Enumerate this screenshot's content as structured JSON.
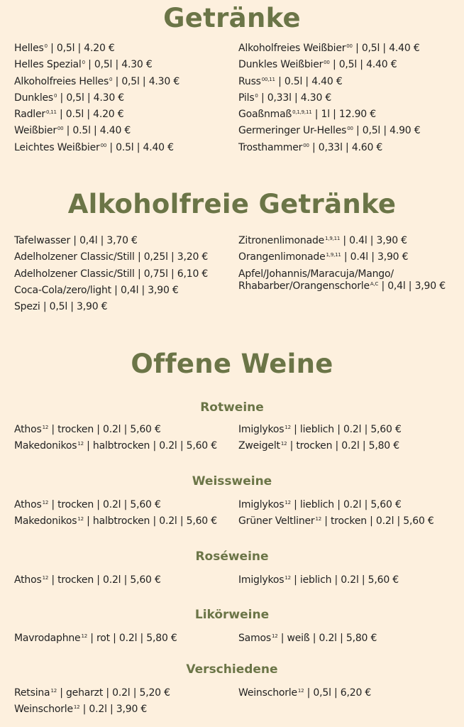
{
  "colors": {
    "background": "#fdf0de",
    "heading": "#6b7547",
    "text": "#222222"
  },
  "sections": [
    {
      "id": "getraenke",
      "title": "Getränke",
      "left": [
        {
          "name": "Helles",
          "sup": "0",
          "rest": " | 0,5l | 4.20 €"
        },
        {
          "name": "Helles Spezial",
          "sup": "0",
          "rest": " | 0,5l | 4.30 €"
        },
        {
          "name": "Alkoholfreies Helles",
          "sup": "0",
          "rest": " | 0,5l | 4.30 €"
        },
        {
          "name": "Dunkles",
          "sup": "0",
          "rest": " | 0,5l | 4.30 €"
        },
        {
          "name": "Radler",
          "sup": "0,11",
          "rest": " | 0.5l | 4.20 €"
        },
        {
          "name": "Weißbier",
          "sup": "00",
          "rest": " | 0.5l | 4.40 €"
        },
        {
          "name": "Leichtes Weißbier",
          "sup": "00",
          "rest": " | 0.5l | 4.40 €"
        }
      ],
      "right": [
        {
          "name": "Alkoholfreies Weißbier",
          "sup": "00",
          "rest": " | 0,5l | 4.40 €"
        },
        {
          "name": "Dunkles Weißbier",
          "sup": "00",
          "rest": " | 0,5l | 4.40 €"
        },
        {
          "name": "Russ",
          "sup": "00,11",
          "rest": " | 0.5l | 4.40 €"
        },
        {
          "name": "Pils",
          "sup": "0",
          "rest": " | 0,33l | 4.30 €"
        },
        {
          "name": "Goaßnmaß",
          "sup": "0,1,9,11",
          "rest": " | 1l | 12.90 €"
        },
        {
          "name": "Germeringer Ur-Helles",
          "sup": "00",
          "rest": " | 0,5l | 4.90 €"
        },
        {
          "name": "Trosthammer",
          "sup": "00",
          "rest": " | 0,33l | 4.60 €"
        }
      ]
    },
    {
      "id": "alkoholfrei",
      "title": "Alkoholfreie Getränke",
      "left": [
        {
          "name": "Tafelwasser",
          "sup": "",
          "rest": " | 0,4l | 3,70 €"
        },
        {
          "name": "Adelholzener Classic/Still",
          "sup": "",
          "rest": " | 0,25l | 3,20 €"
        },
        {
          "name": "Adelholzener Classic/Still",
          "sup": "",
          "rest": " | 0,75l | 6,10 €"
        },
        {
          "name": "Coca-Cola/zero/light",
          "sup": "",
          "rest": " | 0,4l | 3,90 €"
        },
        {
          "name": "Spezi",
          "sup": "",
          "rest": " | 0,5l | 3,90 €"
        }
      ],
      "right": [
        {
          "name": "Zitronenlimonade",
          "sup": "1,9,11",
          "rest": " | 0.4l | 3,90 €"
        },
        {
          "name": "Orangenlimonade",
          "sup": "1,9,11",
          "rest": " | 0.4l | 3,90 €"
        },
        {
          "name": "Apfel/Johannis/Maracuja/Mango/\nRhabarber/Orangenschorle",
          "sup": "A,C",
          "rest": " | 0,4l | 3,90 €"
        }
      ]
    },
    {
      "id": "weine",
      "title": "Offene Weine"
    }
  ],
  "wines": [
    {
      "title": "Rotweine",
      "left": [
        {
          "name": "Athos",
          "sup": "12",
          "rest": " | trocken | 0.2l | 5,60 €"
        },
        {
          "name": "Makedonikos",
          "sup": "12",
          "rest": " | halbtrocken | 0.2l | 5,60 €"
        }
      ],
      "right": [
        {
          "name": "Imiglykos",
          "sup": "12",
          "rest": " | lieblich | 0.2l | 5,60 €"
        },
        {
          "name": "Zweigelt",
          "sup": "12",
          "rest": " | trocken | 0.2l | 5,80 €"
        }
      ]
    },
    {
      "title": "Weissweine",
      "left": [
        {
          "name": "Athos",
          "sup": "12",
          "rest": " | trocken | 0.2l | 5,60 €"
        },
        {
          "name": "Makedonikos",
          "sup": "12",
          "rest": " | halbtrocken | 0.2l | 5,60 €"
        }
      ],
      "right": [
        {
          "name": "Imiglykos",
          "sup": "12",
          "rest": " | lieblich | 0.2l | 5,60 €"
        },
        {
          "name": "Grüner Veltliner",
          "sup": "12",
          "rest": " | trocken | 0.2l | 5,60 €"
        }
      ]
    },
    {
      "title": "Roséweine",
      "left": [
        {
          "name": "Athos",
          "sup": "12",
          "rest": " | trocken | 0.2l | 5,60 €"
        }
      ],
      "right": [
        {
          "name": "Imiglykos",
          "sup": "12",
          "rest": " | ieblich | 0.2l | 5,60 €"
        }
      ]
    },
    {
      "title": "Likörweine",
      "left": [
        {
          "name": "Mavrodaphne",
          "sup": "12",
          "rest": " | rot | 0.2l | 5,80 €"
        }
      ],
      "right": [
        {
          "name": "Samos",
          "sup": "12",
          "rest": " | weiß | 0.2l | 5,80 €"
        }
      ]
    },
    {
      "title": "Verschiedene",
      "left": [
        {
          "name": "Retsina",
          "sup": "12",
          "rest": " | geharzt | 0.2l | 5,20 €"
        },
        {
          "name": "Weinschorle",
          "sup": "12",
          "rest": " | 0.2l | 3,90 €"
        }
      ],
      "right": [
        {
          "name": "Weinschorle",
          "sup": "12",
          "rest": " | 0,5l | 6,20 €"
        }
      ]
    }
  ]
}
